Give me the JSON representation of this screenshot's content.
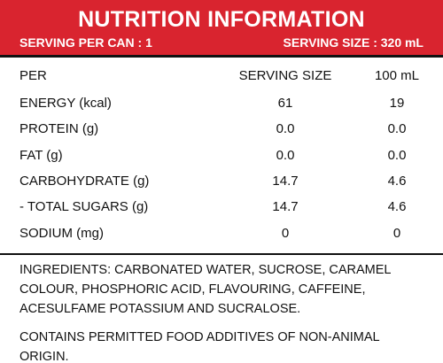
{
  "header": {
    "title": "NUTRITION INFORMATION",
    "servings_per_can": "SERVING PER CAN : 1",
    "serving_size": "SERVING SIZE : 320 mL"
  },
  "table": {
    "columns": [
      "PER",
      "SERVING SIZE",
      "100 mL"
    ],
    "rows": [
      [
        "ENERGY (kcal)",
        "61",
        "19"
      ],
      [
        "PROTEIN (g)",
        "0.0",
        "0.0"
      ],
      [
        "FAT (g)",
        "0.0",
        "0.0"
      ],
      [
        "CARBOHYDRATE (g)",
        "14.7",
        "4.6"
      ],
      [
        "- TOTAL SUGARS (g)",
        "14.7",
        "4.6"
      ],
      [
        "SODIUM (mg)",
        "0",
        "0"
      ]
    ]
  },
  "ingredients": "INGREDIENTS: CARBONATED WATER, SUCROSE, CARAMEL COLOUR, PHOSPHORIC ACID, FLAVOURING, CAFFEINE, ACESULFAME POTASSIUM AND SUCRALOSE.",
  "note": "CONTAINS PERMITTED FOOD ADDITIVES OF NON-ANIMAL ORIGIN."
}
